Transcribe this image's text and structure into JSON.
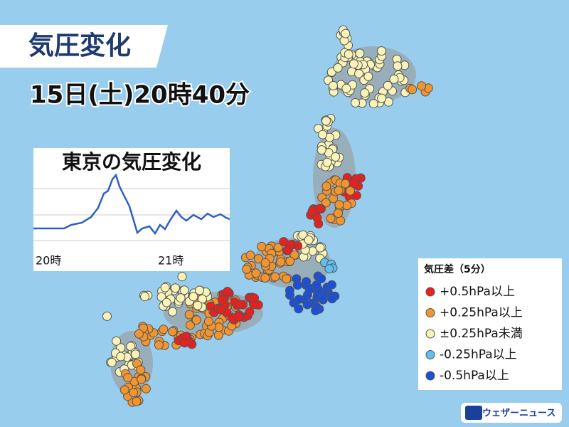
{
  "header": {
    "title": "気圧変化",
    "datetime": "15日(土)20時40分"
  },
  "inset": {
    "title": "東京の気圧変化",
    "x_labels": [
      "20時",
      "21時"
    ]
  },
  "legend": {
    "title": "気圧差（5分）",
    "items": [
      {
        "label": "+0.5hPa以上",
        "color": "#e8201f"
      },
      {
        "label": "+0.25hPa以上",
        "color": "#f0952f"
      },
      {
        "label": "±0.25hPa未満",
        "color": "#faf3b8"
      },
      {
        "label": "-0.25hPa以上",
        "color": "#5ec0ef"
      },
      {
        "label": "-0.5hPa以上",
        "color": "#1a4fd8"
      }
    ]
  },
  "logo": {
    "text": "ウェザーニュース"
  }
}
